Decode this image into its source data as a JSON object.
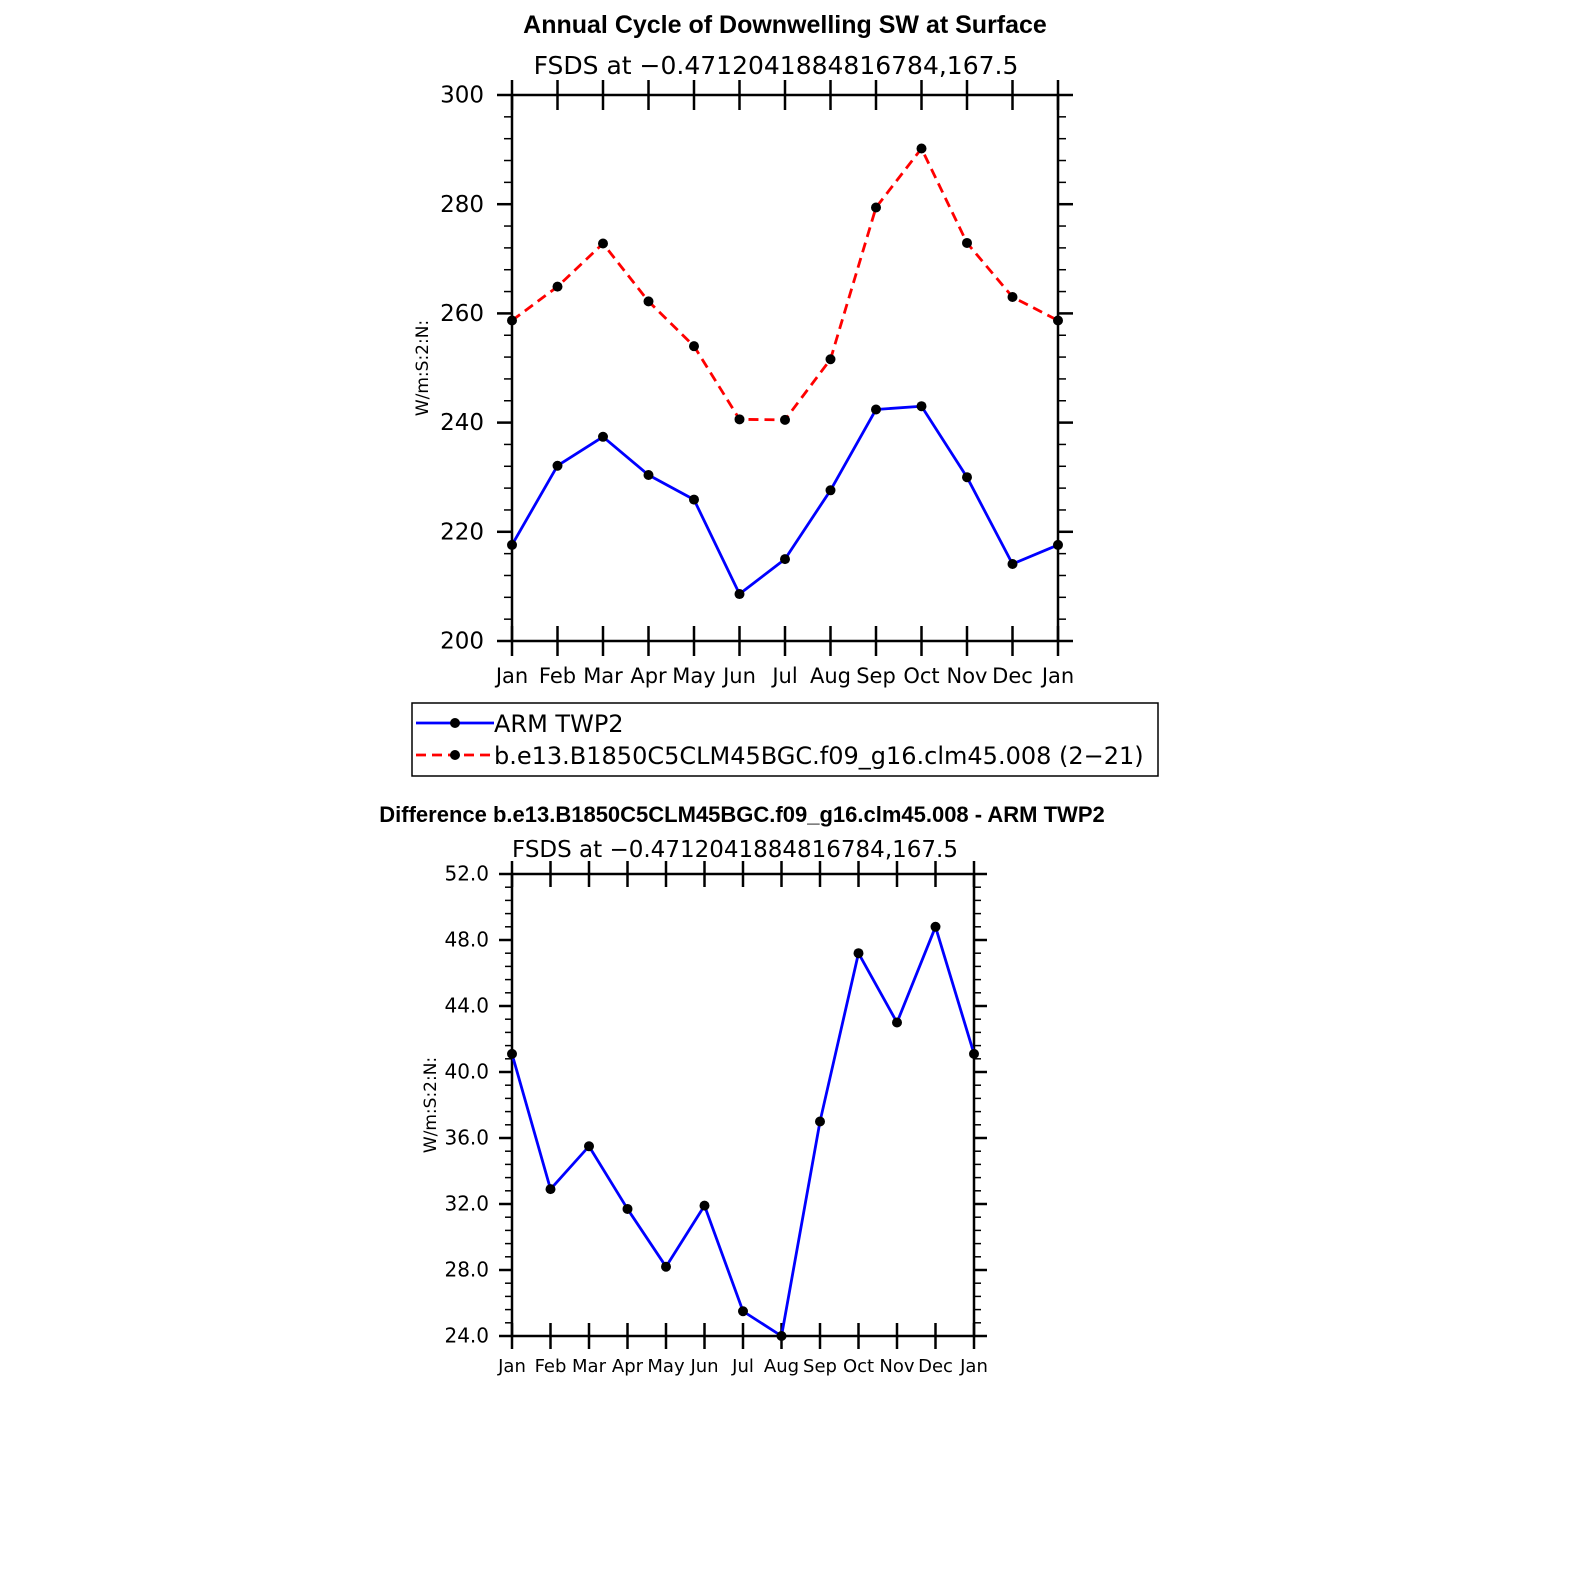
{
  "chart_data": [
    {
      "type": "line",
      "title": "Annual Cycle of Downwelling SW at Surface",
      "subtitle": "FSDS at −0.4712041884816784,167.5",
      "xlabel": "",
      "ylabel": "W/m:S:2:N:",
      "categories": [
        "Jan",
        "Feb",
        "Mar",
        "Apr",
        "May",
        "Jun",
        "Jul",
        "Aug",
        "Sep",
        "Oct",
        "Nov",
        "Dec",
        "Jan"
      ],
      "ylim": [
        200,
        300
      ],
      "yticks": [
        "200",
        "220",
        "240",
        "260",
        "280",
        "300"
      ],
      "series": [
        {
          "name": "ARM TWP2",
          "color": "#0000ff",
          "dash": "solid",
          "values": [
            217.6,
            232.1,
            237.4,
            230.4,
            225.9,
            208.6,
            215.0,
            227.6,
            242.4,
            243.0,
            230.0,
            214.1,
            217.6
          ]
        },
        {
          "name": "b.e13.B1850C5CLM45BGC.f09_g16.clm45.008 (2−21)",
          "color": "#ff0000",
          "dash": "dashed",
          "values": [
            258.7,
            264.9,
            272.8,
            262.2,
            254.0,
            240.6,
            240.5,
            251.6,
            279.4,
            290.2,
            272.9,
            263.0,
            258.7
          ]
        }
      ],
      "legend": "below"
    },
    {
      "type": "line",
      "title": "Difference b.e13.B1850C5CLM45BGC.f09_g16.clm45.008 - ARM TWP2",
      "subtitle": "FSDS at −0.4712041884816784,167.5",
      "xlabel": "",
      "ylabel": "W/m:S:2:N:",
      "categories": [
        "Jan",
        "Feb",
        "Mar",
        "Apr",
        "May",
        "Jun",
        "Jul",
        "Aug",
        "Sep",
        "Oct",
        "Nov",
        "Dec",
        "Jan"
      ],
      "ylim": [
        24,
        52
      ],
      "yticks": [
        "24.0",
        "28.0",
        "32.0",
        "36.0",
        "40.0",
        "44.0",
        "48.0",
        "52.0"
      ],
      "series": [
        {
          "name": "Difference",
          "color": "#0000ff",
          "dash": "solid",
          "values": [
            41.1,
            32.9,
            35.5,
            31.7,
            28.2,
            31.9,
            25.5,
            24.0,
            37.0,
            47.2,
            43.0,
            48.8,
            41.1
          ]
        }
      ]
    }
  ]
}
